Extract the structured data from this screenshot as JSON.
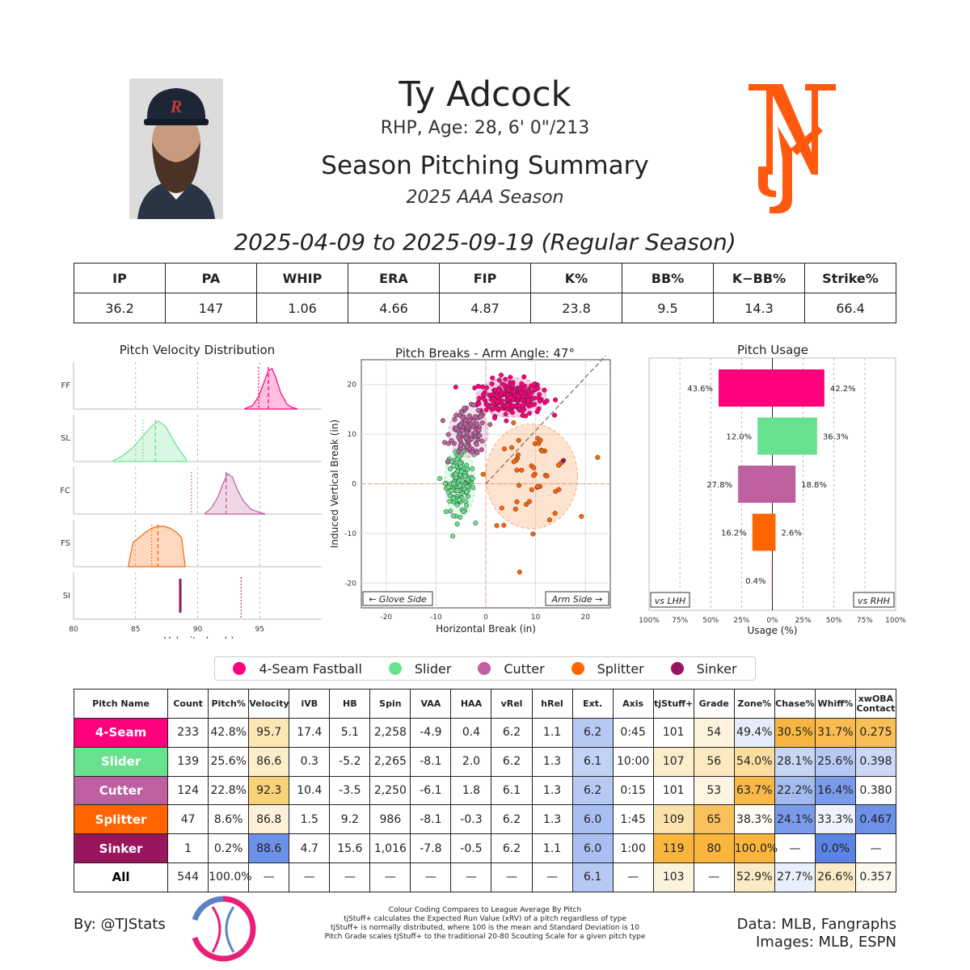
{
  "header": {
    "name": "Ty Adcock",
    "info": "RHP, Age: 28, 6' 0\"/213",
    "title": "Season Pitching Summary",
    "season": "2025 AAA Season",
    "dates": "2025-04-09 to 2025-09-19 (Regular Season)"
  },
  "images": {
    "player_photo": "player-headshot",
    "team_logo": "ny-mets-logo",
    "tjstats_logo": "tjstats-logo"
  },
  "summary": {
    "headers": [
      "IP",
      "PA",
      "WHIP",
      "ERA",
      "FIP",
      "K%",
      "BB%",
      "K−BB%",
      "Strike%"
    ],
    "values": [
      "36.2",
      "147",
      "1.06",
      "4.66",
      "4.87",
      "23.8",
      "9.5",
      "14.3",
      "66.4"
    ]
  },
  "colors": {
    "FF": "#ff007d",
    "SL": "#67e18d",
    "FC": "#be5fa0",
    "FS": "#ff6400",
    "SI": "#98165d"
  },
  "legend": [
    {
      "label": "4-Seam Fastball",
      "color": "#ff007d"
    },
    {
      "label": "Slider",
      "color": "#67e18d"
    },
    {
      "label": "Cutter",
      "color": "#be5fa0"
    },
    {
      "label": "Splitter",
      "color": "#ff6400"
    },
    {
      "label": "Sinker",
      "color": "#98165d"
    }
  ],
  "chart_data": [
    {
      "type": "area",
      "title": "Pitch Velocity Distribution",
      "xlabel": "Velocity (mph)",
      "xlim": [
        80,
        100
      ],
      "xticks": [
        80,
        85,
        90,
        95
      ],
      "series": [
        {
          "name": "FF",
          "color": "#ff007d",
          "mean": 95.7,
          "league_avg": 94.9,
          "x": [
            93.8,
            94.4,
            94.9,
            95.3,
            95.7,
            96.0,
            96.3,
            96.7,
            97.2,
            97.6,
            98.0
          ],
          "y": [
            0.01,
            0.08,
            0.3,
            0.62,
            0.95,
            1.0,
            0.78,
            0.4,
            0.12,
            0.04,
            0.01
          ]
        },
        {
          "name": "SL",
          "color": "#67e18d",
          "mean": 86.6,
          "league_avg": 85.6,
          "x": [
            83.2,
            84.0,
            84.8,
            85.5,
            86.2,
            86.8,
            87.4,
            88.0,
            88.6,
            89.1
          ],
          "y": [
            0.02,
            0.15,
            0.35,
            0.6,
            0.85,
            1.0,
            0.88,
            0.55,
            0.25,
            0.05
          ]
        },
        {
          "name": "FC",
          "color": "#be5fa0",
          "mean": 92.3,
          "league_avg": 89.5,
          "x": [
            90.6,
            91.1,
            91.6,
            92.0,
            92.4,
            92.8,
            93.2,
            93.7,
            94.3,
            95.0,
            95.4
          ],
          "y": [
            0.02,
            0.15,
            0.4,
            0.72,
            1.0,
            0.92,
            0.6,
            0.32,
            0.12,
            0.04,
            0.01
          ]
        },
        {
          "name": "FS",
          "color": "#ff6400",
          "mean": 86.8,
          "league_avg": 86.3,
          "x": [
            84.4,
            84.8,
            85.3,
            85.8,
            86.3,
            86.8,
            87.3,
            87.8,
            88.3,
            88.7,
            89.0
          ],
          "y": [
            0.0,
            0.6,
            0.72,
            0.85,
            0.95,
            1.0,
            1.0,
            0.95,
            0.85,
            0.72,
            0.0
          ]
        },
        {
          "name": "SI",
          "color": "#98165d",
          "mean": 88.6,
          "league_avg": 93.5,
          "x": [
            88.6
          ],
          "y": [
            1.0
          ]
        }
      ]
    },
    {
      "type": "scatter",
      "title": "Pitch Breaks - Arm Angle: 47°",
      "xlabel": "Horizontal Break (in)",
      "ylabel": "Induced Vertical Break (in)",
      "xlim": [
        -25,
        25
      ],
      "ylim": [
        -25,
        25
      ],
      "xticks": [
        -20,
        -10,
        0,
        10,
        20
      ],
      "yticks": [
        -20,
        -10,
        0,
        10,
        20
      ],
      "arm_angle": 47,
      "annotations": [
        "← Glove Side",
        "Arm Side →"
      ],
      "series": [
        {
          "name": "4-Seam Fastball",
          "color": "#ff007d",
          "center": [
            5.1,
            17.4
          ],
          "spread": [
            3.2,
            1.8
          ],
          "count": 233
        },
        {
          "name": "Slider",
          "color": "#67e18d",
          "center": [
            -5.2,
            0.3
          ],
          "spread": [
            1.4,
            3.2
          ],
          "count": 139
        },
        {
          "name": "Cutter",
          "color": "#be5fa0",
          "center": [
            -3.5,
            10.4
          ],
          "spread": [
            1.8,
            2.3
          ],
          "count": 124
        },
        {
          "name": "Splitter",
          "color": "#ff6400",
          "center": [
            9.2,
            1.5
          ],
          "spread": [
            4.2,
            4.8
          ],
          "count": 47
        },
        {
          "name": "Sinker",
          "color": "#98165d",
          "center": [
            15.6,
            4.7
          ],
          "spread": [
            0,
            0
          ],
          "count": 1
        }
      ]
    },
    {
      "type": "bar",
      "title": "Pitch Usage",
      "xlabel": "Usage (%)",
      "xlim": [
        -100,
        100
      ],
      "xticks": [
        "100%",
        "75%",
        "50%",
        "25%",
        "0%",
        "25%",
        "50%",
        "75%",
        "100%"
      ],
      "side_labels": [
        "vs LHH",
        "vs RHH"
      ],
      "categories": [
        "4-Seam Fastball",
        "Slider",
        "Cutter",
        "Splitter",
        "Sinker"
      ],
      "series": [
        {
          "name": "vs LHH",
          "values": [
            43.6,
            12.0,
            27.8,
            16.2,
            0.4
          ],
          "labels": [
            "43.6%",
            "12.0%",
            "27.8%",
            "16.2%",
            "0.4%"
          ]
        },
        {
          "name": "vs RHH",
          "values": [
            42.2,
            36.3,
            18.8,
            2.6,
            0.0
          ],
          "labels": [
            "42.2%",
            "36.3%",
            "18.8%",
            "2.6%",
            ""
          ]
        }
      ]
    },
    {
      "type": "table",
      "columns": [
        "Pitch Name",
        "Count",
        "Pitch%",
        "Velocity",
        "iVB",
        "HB",
        "Spin",
        "VAA",
        "HAA",
        "vRel",
        "hRel",
        "Ext.",
        "Axis",
        "tjStuff+",
        "Grade",
        "Zone%",
        "Chase%",
        "Whiff%",
        "xwOBA Contact"
      ],
      "rows": [
        {
          "name": "4-Seam",
          "color": "#ff007d",
          "cells": [
            "233",
            "42.8%",
            "95.7",
            "17.4",
            "5.1",
            "2,258",
            "-4.9",
            "0.4",
            "6.2",
            "1.1",
            "6.2",
            "0:45",
            "101",
            "54",
            "49.4%",
            "30.5%",
            "31.7%",
            "0.275"
          ],
          "bg": [
            "",
            "",
            "#fbe6b4",
            "",
            "",
            "",
            "",
            "",
            "",
            "",
            "#b7c9f3",
            "",
            "",
            "#fdf3dc",
            "#e4ebfb",
            "#f9b541",
            "#f9bb4f",
            "#f9bf57"
          ]
        },
        {
          "name": "Slider",
          "color": "#67e18d",
          "cells": [
            "139",
            "25.6%",
            "86.6",
            "0.3",
            "-5.2",
            "2,265",
            "-8.1",
            "2.0",
            "6.2",
            "1.3",
            "6.1",
            "10:00",
            "107",
            "56",
            "54.0%",
            "28.1%",
            "25.6%",
            "0.398"
          ],
          "bg": [
            "",
            "",
            "#fbeec9",
            "",
            "",
            "",
            "",
            "",
            "",
            "",
            "#c2d2f5",
            "",
            "#fcedcb",
            "#fbe9c0",
            "#fbdd9f",
            "#c8d6f6",
            "#b6c8f3",
            "#cbd8f6"
          ]
        },
        {
          "name": "Cutter",
          "color": "#be5fa0",
          "cells": [
            "124",
            "22.8%",
            "92.3",
            "10.4",
            "-3.5",
            "2,250",
            "-6.1",
            "1.8",
            "6.1",
            "1.3",
            "6.2",
            "0:15",
            "101",
            "53",
            "63.7%",
            "22.2%",
            "16.4%",
            "0.380"
          ],
          "bg": [
            "",
            "",
            "#f9d178",
            "",
            "",
            "",
            "",
            "",
            "",
            "",
            "#b7c9f3",
            "",
            "",
            "#fdf5e2",
            "#f9b848",
            "#a4bbf0",
            "#7a9aea",
            "#fff"
          ]
        },
        {
          "name": "Splitter",
          "color": "#ff6400",
          "cells": [
            "47",
            "8.6%",
            "86.8",
            "1.5",
            "9.2",
            "986",
            "-8.1",
            "-0.3",
            "6.2",
            "1.3",
            "6.0",
            "1:45",
            "109",
            "65",
            "38.3%",
            "24.1%",
            "33.3%",
            "0.467"
          ],
          "bg": [
            "",
            "",
            "#fdf2d9",
            "",
            "",
            "",
            "",
            "",
            "",
            "",
            "#a9bef1",
            "",
            "#fbe2ac",
            "#f9c15c",
            "#fefbf3",
            "#7a9aea",
            "#eef2fc",
            "#6d90e8"
          ]
        },
        {
          "name": "Sinker",
          "color": "#98165d",
          "cells": [
            "1",
            "0.2%",
            "88.6",
            "4.7",
            "15.6",
            "1,016",
            "-7.8",
            "-0.5",
            "6.2",
            "1.1",
            "6.0",
            "1:00",
            "119",
            "80",
            "100.0%",
            "—",
            "0.0%",
            "—"
          ],
          "bg": [
            "",
            "",
            "#6d90e8",
            "",
            "",
            "",
            "",
            "",
            "",
            "",
            "#a9bef1",
            "",
            "#f9b53d",
            "#f9b53d",
            "#f9b53d",
            "",
            "#5b82e5",
            ""
          ]
        },
        {
          "name": "All",
          "color": "#ffffff",
          "cells": [
            "544",
            "100.0%",
            "—",
            "—",
            "—",
            "—",
            "—",
            "—",
            "—",
            "—",
            "6.1",
            "—",
            "103",
            "—",
            "52.9%",
            "27.7%",
            "26.6%",
            "0.357"
          ],
          "bg": [
            "",
            "",
            "",
            "",
            "",
            "",
            "",
            "",
            "",
            "",
            "#b7c9f3",
            "",
            "#fdf3dc",
            "",
            "#fbebc4",
            "#e9effc",
            "#fbecc6",
            "#fef9ee"
          ]
        }
      ]
    }
  ],
  "footer": {
    "by": "By: @TJStats",
    "notes": [
      "Colour Coding Compares to League Average By Pitch",
      "tjStuff+ calculates the Expected Run Value (xRV) of a pitch regardless of type",
      "tjStuff+ is normally distributed, where 100 is the mean and Standard Deviation is 10",
      "Pitch Grade scales tjStuff+ to the traditional 20-80 Scouting Scale for a given pitch type"
    ],
    "data": "Data: MLB, Fangraphs",
    "images": "Images: MLB, ESPN"
  }
}
